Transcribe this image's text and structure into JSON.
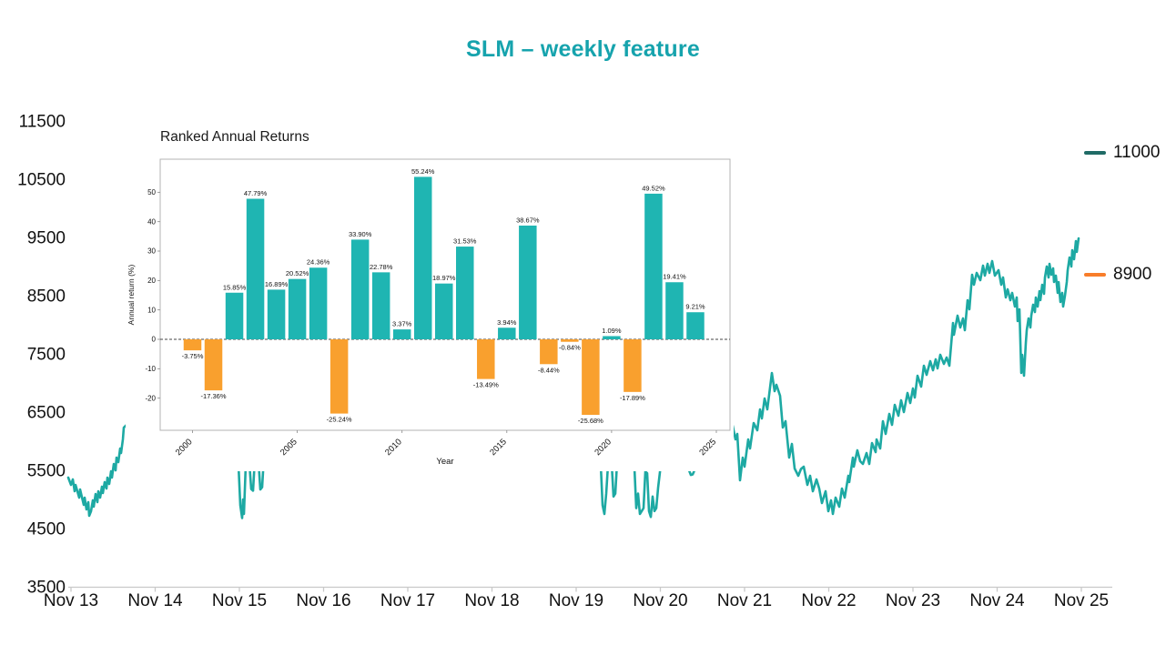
{
  "title": {
    "text": "SLM – weekly feature",
    "color": "#16a3ad"
  },
  "legend": {
    "items": [
      {
        "label": "11000",
        "value": 11000,
        "color": "#206b66"
      },
      {
        "label": "8900",
        "value": 8900,
        "color": "#f87d2a"
      }
    ]
  },
  "colors": {
    "price_line": "#1da9a3",
    "bar_positive": "#1fb5b2",
    "bar_negative": "#f9a02e",
    "axis_line": "#c9c9c9",
    "inset_box_border": "#b3b3b3",
    "zero_line": "#444444"
  },
  "chart_data": [
    {
      "type": "line",
      "title": "SLM – weekly feature",
      "xlabel": "",
      "ylabel": "",
      "x_ticks": [
        "Nov 13",
        "Nov 14",
        "Nov 15",
        "Nov 16",
        "Nov 17",
        "Nov 18",
        "Nov 19",
        "Nov 20",
        "Nov 21",
        "Nov 22",
        "Nov 23",
        "Nov 24",
        "Nov 25"
      ],
      "y_ticks": [
        11500,
        10500,
        9500,
        8500,
        7500,
        6500,
        5500,
        4500,
        3500
      ],
      "ylim": [
        3500,
        11500
      ],
      "grid": false,
      "legend_position": "right",
      "markers": [
        {
          "label": "11000",
          "value": 11000,
          "color": "#206b66"
        },
        {
          "label": "8900",
          "value": 8900,
          "color": "#f87d2a"
        }
      ],
      "series": [
        {
          "name": "weekly price",
          "color": "#1da9a3",
          "points": [
            [
              12.968,
              5375
            ],
            [
              13.0,
              5250
            ],
            [
              13.022,
              5344
            ],
            [
              13.043,
              5141
            ],
            [
              13.054,
              5250
            ],
            [
              13.097,
              5031
            ],
            [
              13.108,
              5172
            ],
            [
              13.151,
              4906
            ],
            [
              13.162,
              5031
            ],
            [
              13.184,
              4828
            ],
            [
              13.205,
              4953
            ],
            [
              13.216,
              4719
            ],
            [
              13.238,
              4797
            ],
            [
              13.259,
              4984
            ],
            [
              13.27,
              4875
            ],
            [
              13.292,
              5094
            ],
            [
              13.314,
              4953
            ],
            [
              13.324,
              5141
            ],
            [
              13.346,
              5031
            ],
            [
              13.368,
              5219
            ],
            [
              13.378,
              5109
            ],
            [
              13.4,
              5297
            ],
            [
              13.422,
              5188
            ],
            [
              13.432,
              5375
            ],
            [
              13.454,
              5266
            ],
            [
              13.476,
              5484
            ],
            [
              13.486,
              5375
            ],
            [
              13.508,
              5609
            ],
            [
              13.53,
              5500
            ],
            [
              13.541,
              5719
            ],
            [
              13.562,
              5641
            ],
            [
              13.584,
              5875
            ],
            [
              13.595,
              5797
            ],
            [
              13.616,
              6031
            ],
            [
              13.627,
              6234
            ],
            [
              13.886,
              6600
            ],
            [
              14.319,
              7000
            ],
            [
              14.751,
              6500
            ],
            [
              14.946,
              5900
            ],
            [
              14.989,
              5600
            ],
            [
              15.011,
              4900
            ],
            [
              15.032,
              4680
            ],
            [
              15.043,
              5000
            ],
            [
              15.054,
              4750
            ],
            [
              15.076,
              5600
            ],
            [
              15.119,
              5620
            ],
            [
              15.141,
              5180
            ],
            [
              15.162,
              5150
            ],
            [
              15.184,
              5700
            ],
            [
              15.227,
              5650
            ],
            [
              15.249,
              5170
            ],
            [
              15.27,
              5210
            ],
            [
              15.292,
              5750
            ],
            [
              15.724,
              6500
            ],
            [
              16.481,
              7300
            ],
            [
              17.238,
              6700
            ],
            [
              17.995,
              7600
            ],
            [
              18.643,
              6600
            ],
            [
              19.076,
              6100
            ],
            [
              19.249,
              5700
            ],
            [
              19.292,
              5600
            ],
            [
              19.314,
              4900
            ],
            [
              19.335,
              4750
            ],
            [
              19.357,
              5100
            ],
            [
              19.378,
              5600
            ],
            [
              19.422,
              5620
            ],
            [
              19.443,
              5050
            ],
            [
              19.465,
              5100
            ],
            [
              19.486,
              5650
            ],
            [
              19.595,
              6200
            ],
            [
              19.692,
              5550
            ],
            [
              19.714,
              4850
            ],
            [
              19.735,
              5100
            ],
            [
              19.757,
              4750
            ],
            [
              19.778,
              4800
            ],
            [
              19.8,
              4850
            ],
            [
              19.822,
              5480
            ],
            [
              19.843,
              5450
            ],
            [
              19.865,
              4800
            ],
            [
              19.886,
              4700
            ],
            [
              19.908,
              5050
            ],
            [
              19.93,
              4800
            ],
            [
              19.951,
              4850
            ],
            [
              19.973,
              5200
            ],
            [
              20.005,
              5600
            ],
            [
              20.157,
              6100
            ],
            [
              20.265,
              5700
            ],
            [
              20.341,
              5500
            ],
            [
              20.362,
              5420
            ],
            [
              20.384,
              5430
            ],
            [
              20.405,
              5500
            ],
            [
              20.589,
              5900
            ],
            [
              20.751,
              6100
            ],
            [
              20.859,
              6266
            ],
            [
              20.892,
              6031
            ],
            [
              20.914,
              6125
            ],
            [
              20.946,
              5328
            ],
            [
              20.978,
              5719
            ],
            [
              21.0,
              5563
            ],
            [
              21.043,
              6031
            ],
            [
              21.065,
              5875
            ],
            [
              21.108,
              6313
            ],
            [
              21.151,
              6188
            ],
            [
              21.184,
              6547
            ],
            [
              21.205,
              6391
            ],
            [
              21.238,
              6734
            ],
            [
              21.27,
              6547
            ],
            [
              21.324,
              7172
            ],
            [
              21.357,
              6859
            ],
            [
              21.378,
              6969
            ],
            [
              21.422,
              6781
            ],
            [
              21.454,
              6234
            ],
            [
              21.486,
              6344
            ],
            [
              21.53,
              5719
            ],
            [
              21.562,
              5953
            ],
            [
              21.595,
              5531
            ],
            [
              21.638,
              5406
            ],
            [
              21.67,
              5523
            ],
            [
              21.703,
              5563
            ],
            [
              21.746,
              5250
            ],
            [
              21.778,
              5406
            ],
            [
              21.811,
              5141
            ],
            [
              21.854,
              5344
            ],
            [
              21.886,
              5188
            ],
            [
              21.919,
              4938
            ],
            [
              21.962,
              5141
            ],
            [
              21.995,
              4797
            ],
            [
              22.027,
              4984
            ],
            [
              22.049,
              4750
            ],
            [
              22.081,
              5031
            ],
            [
              22.124,
              4875
            ],
            [
              22.157,
              5188
            ],
            [
              22.189,
              5031
            ],
            [
              22.232,
              5406
            ],
            [
              22.243,
              5297
            ],
            [
              22.286,
              5719
            ],
            [
              22.297,
              5563
            ],
            [
              22.34,
              5844
            ],
            [
              22.373,
              5656
            ],
            [
              22.405,
              5609
            ],
            [
              22.449,
              5797
            ],
            [
              22.481,
              5609
            ],
            [
              22.514,
              5969
            ],
            [
              22.557,
              5813
            ],
            [
              22.568,
              6031
            ],
            [
              22.611,
              5875
            ],
            [
              22.643,
              6344
            ],
            [
              22.676,
              6125
            ],
            [
              22.719,
              6469
            ],
            [
              22.751,
              6281
            ],
            [
              22.784,
              6625
            ],
            [
              22.827,
              6438
            ],
            [
              22.859,
              6703
            ],
            [
              22.892,
              6500
            ],
            [
              22.935,
              6828
            ],
            [
              22.968,
              6656
            ],
            [
              23.0,
              6906
            ],
            [
              23.022,
              6750
            ],
            [
              23.054,
              7125
            ],
            [
              23.097,
              6938
            ],
            [
              23.13,
              7297
            ],
            [
              23.162,
              7141
            ],
            [
              23.205,
              7375
            ],
            [
              23.238,
              7219
            ],
            [
              23.27,
              7406
            ],
            [
              23.292,
              7250
            ],
            [
              23.324,
              7484
            ],
            [
              23.368,
              7328
            ],
            [
              23.4,
              7438
            ],
            [
              23.432,
              7297
            ],
            [
              23.476,
              8031
            ],
            [
              23.486,
              7828
            ],
            [
              23.53,
              8156
            ],
            [
              23.562,
              7953
            ],
            [
              23.595,
              8109
            ],
            [
              23.616,
              7906
            ],
            [
              23.649,
              8422
            ],
            [
              23.67,
              8266
            ],
            [
              23.703,
              8859
            ],
            [
              23.724,
              8688
            ],
            [
              23.757,
              8891
            ],
            [
              23.8,
              8766
            ],
            [
              23.832,
              9016
            ],
            [
              23.854,
              8844
            ],
            [
              23.886,
              9047
            ],
            [
              23.908,
              8891
            ],
            [
              23.941,
              9094
            ],
            [
              23.973,
              8844
            ],
            [
              24.016,
              8938
            ],
            [
              24.049,
              8688
            ],
            [
              24.07,
              8813
            ],
            [
              24.103,
              8469
            ],
            [
              24.124,
              8609
            ],
            [
              24.157,
              8422
            ],
            [
              24.178,
              8547
            ],
            [
              24.211,
              8313
            ],
            [
              24.232,
              8469
            ],
            [
              24.243,
              8063
            ],
            [
              24.265,
              8266
            ],
            [
              24.286,
              7172
            ],
            [
              24.297,
              7484
            ],
            [
              24.319,
              7125
            ],
            [
              24.341,
              7688
            ],
            [
              24.351,
              7906
            ],
            [
              24.373,
              8109
            ],
            [
              24.395,
              7953
            ],
            [
              24.405,
              8156
            ],
            [
              24.427,
              8344
            ],
            [
              24.449,
              8219
            ],
            [
              24.459,
              8469
            ],
            [
              24.481,
              8313
            ],
            [
              24.503,
              8578
            ],
            [
              24.514,
              8422
            ],
            [
              24.535,
              8688
            ],
            [
              24.557,
              8531
            ],
            [
              24.568,
              8813
            ],
            [
              24.589,
              9000
            ],
            [
              24.611,
              8813
            ],
            [
              24.622,
              9047
            ],
            [
              24.643,
              8859
            ],
            [
              24.665,
              8969
            ],
            [
              24.676,
              8734
            ],
            [
              24.697,
              8844
            ],
            [
              24.719,
              8547
            ],
            [
              24.73,
              8734
            ],
            [
              24.751,
              8391
            ],
            [
              24.773,
              8547
            ],
            [
              24.784,
              8313
            ],
            [
              24.805,
              8500
            ],
            [
              24.827,
              8734
            ],
            [
              24.838,
              8938
            ],
            [
              24.859,
              9156
            ],
            [
              24.881,
              9000
            ],
            [
              24.892,
              9281
            ],
            [
              24.913,
              9125
            ],
            [
              24.935,
              9438
            ],
            [
              24.946,
              9250
            ],
            [
              24.968,
              9484
            ]
          ]
        }
      ]
    },
    {
      "type": "bar",
      "title": "Ranked Annual Returns",
      "xlabel": "Year",
      "ylabel": "Annual return (%)",
      "categories": [
        2000,
        2001,
        2002,
        2003,
        2004,
        2005,
        2006,
        2007,
        2008,
        2009,
        2010,
        2011,
        2012,
        2013,
        2014,
        2015,
        2016,
        2017,
        2018,
        2019,
        2020,
        2021,
        2022,
        2023,
        2024
      ],
      "values": [
        -3.75,
        -17.36,
        15.85,
        47.79,
        16.89,
        20.52,
        24.36,
        -25.24,
        33.9,
        22.78,
        3.37,
        55.24,
        18.97,
        31.53,
        -13.49,
        3.94,
        38.67,
        -8.44,
        -0.84,
        -25.68,
        1.09,
        -17.89,
        49.52,
        19.41,
        9.21
      ],
      "value_labels": [
        "-3.75%",
        "-17.36%",
        "15.85%",
        "47.79%",
        "16.89%",
        "20.52%",
        "24.36%",
        "-25.24%",
        "33.90%",
        "22.78%",
        "3.37%",
        "55.24%",
        "18.97%",
        "31.53%",
        "-13.49%",
        "3.94%",
        "38.67%",
        "-8.44%",
        "-0.84%",
        "-25.68%",
        "1.09%",
        "-17.89%",
        "49.52%",
        "19.41%",
        "9.21%"
      ],
      "x_ticks": [
        2000,
        2005,
        2010,
        2015,
        2020,
        2025
      ],
      "y_ticks": [
        -20,
        -10,
        0,
        10,
        20,
        30,
        40,
        50
      ],
      "zero_line": "dashed",
      "grid": false,
      "positive_color": "#1fb5b2",
      "negative_color": "#f9a02e"
    }
  ]
}
